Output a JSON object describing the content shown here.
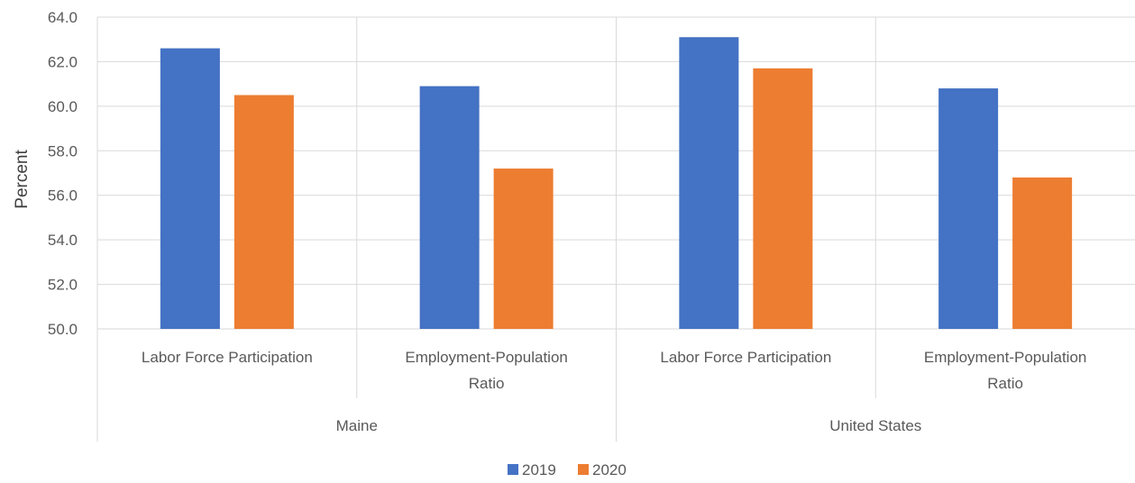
{
  "chart_data": {
    "type": "bar",
    "title": "",
    "ylabel": "Percent",
    "ylim": [
      50,
      64
    ],
    "yticks": [
      "50.0",
      "52.0",
      "54.0",
      "56.0",
      "58.0",
      "60.0",
      "62.0",
      "64.0"
    ],
    "groups": [
      {
        "label": "Maine",
        "categories": [
          [
            "Labor Force Participation"
          ],
          [
            "Employment-Population",
            "Ratio"
          ]
        ]
      },
      {
        "label": "United States",
        "categories": [
          [
            "Labor Force Participation"
          ],
          [
            "Employment-Population",
            "Ratio"
          ]
        ]
      }
    ],
    "series": [
      {
        "name": "2019",
        "color": "#4472C4",
        "values": [
          62.6,
          60.9,
          63.1,
          60.8
        ]
      },
      {
        "name": "2020",
        "color": "#ED7D31",
        "values": [
          60.5,
          57.2,
          61.7,
          56.8
        ]
      }
    ],
    "grid": true,
    "legend": "bottom"
  }
}
